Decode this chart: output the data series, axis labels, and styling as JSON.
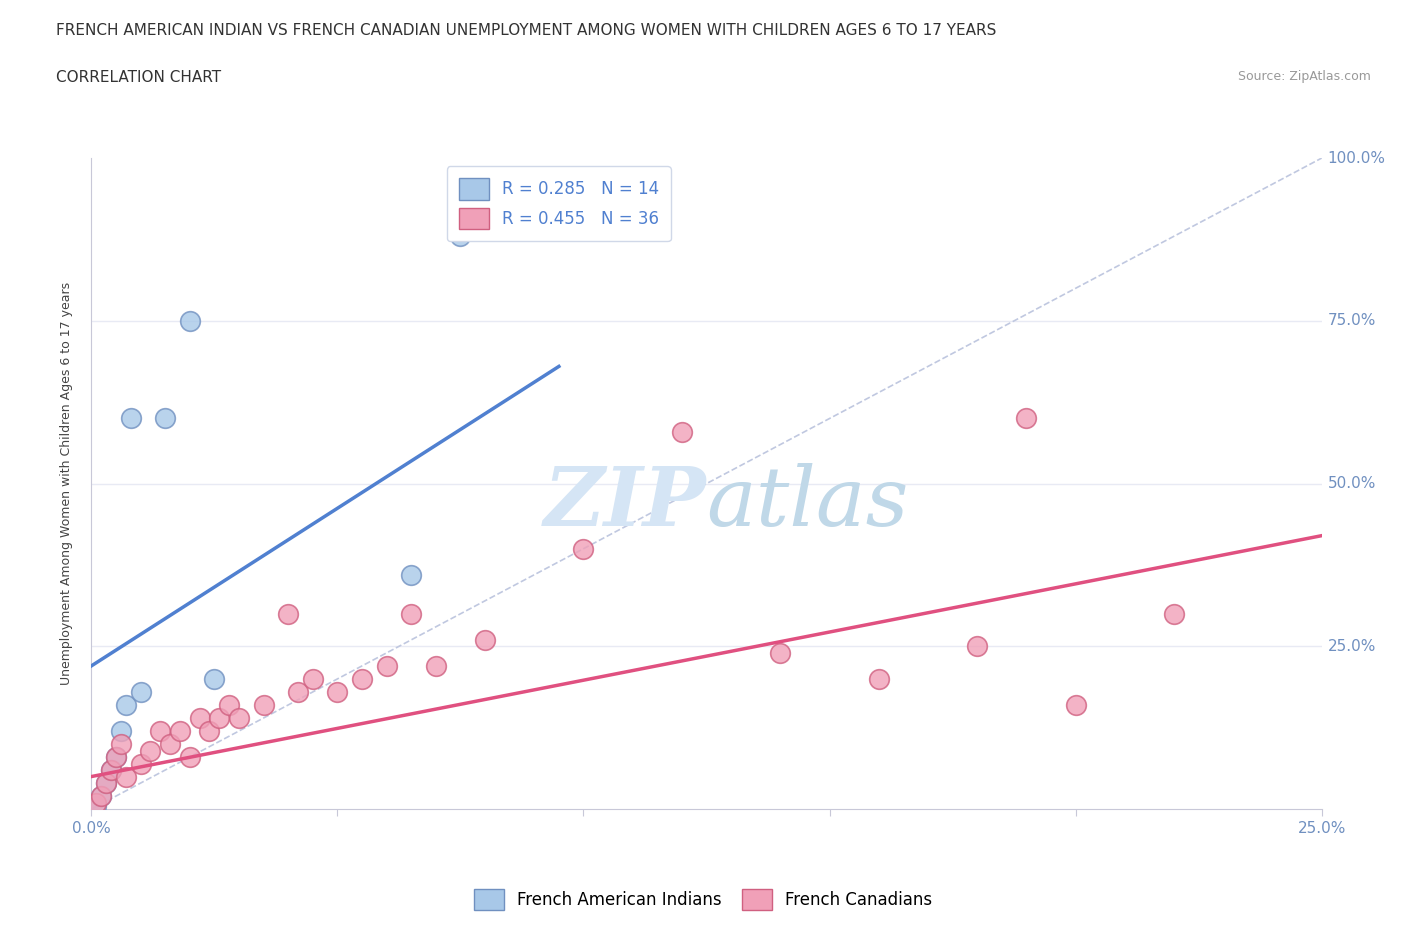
{
  "title": "FRENCH AMERICAN INDIAN VS FRENCH CANADIAN UNEMPLOYMENT AMONG WOMEN WITH CHILDREN AGES 6 TO 17 YEARS",
  "subtitle": "CORRELATION CHART",
  "source": "Source: ZipAtlas.com",
  "ylabel": "Unemployment Among Women with Children Ages 6 to 17 years",
  "xlim": [
    0,
    0.25
  ],
  "ylim": [
    0,
    1.0
  ],
  "xticks": [
    0.0,
    0.05,
    0.1,
    0.15,
    0.2,
    0.25
  ],
  "yticks": [
    0.0,
    0.25,
    0.5,
    0.75,
    1.0
  ],
  "legend_blue_label": "R = 0.285   N = 14",
  "legend_pink_label": "R = 0.455   N = 36",
  "legend_bottom_blue": "French American Indians",
  "legend_bottom_pink": "French Canadians",
  "blue_color": "#A8C8E8",
  "pink_color": "#F0A0B8",
  "blue_edge_color": "#7090C0",
  "pink_edge_color": "#D06080",
  "blue_line_color": "#5080D0",
  "pink_line_color": "#E05080",
  "ref_line_color": "#C0C8E0",
  "axis_tick_color": "#7090C0",
  "grid_color": "#E8EAF4",
  "watermark_color": "#D5E5F5",
  "background_color": "#FFFFFF",
  "blue_scatter_x": [
    0.001,
    0.002,
    0.003,
    0.004,
    0.005,
    0.006,
    0.007,
    0.008,
    0.01,
    0.015,
    0.02,
    0.025,
    0.065,
    0.075
  ],
  "blue_scatter_y": [
    0.005,
    0.02,
    0.04,
    0.06,
    0.08,
    0.12,
    0.16,
    0.6,
    0.18,
    0.6,
    0.75,
    0.2,
    0.36,
    0.88
  ],
  "pink_scatter_x": [
    0.001,
    0.002,
    0.003,
    0.004,
    0.005,
    0.006,
    0.007,
    0.01,
    0.012,
    0.014,
    0.016,
    0.018,
    0.02,
    0.022,
    0.024,
    0.026,
    0.028,
    0.03,
    0.035,
    0.04,
    0.042,
    0.045,
    0.05,
    0.055,
    0.06,
    0.065,
    0.07,
    0.08,
    0.1,
    0.12,
    0.14,
    0.16,
    0.18,
    0.19,
    0.2,
    0.22
  ],
  "pink_scatter_y": [
    0.01,
    0.02,
    0.04,
    0.06,
    0.08,
    0.1,
    0.05,
    0.07,
    0.09,
    0.12,
    0.1,
    0.12,
    0.08,
    0.14,
    0.12,
    0.14,
    0.16,
    0.14,
    0.16,
    0.3,
    0.18,
    0.2,
    0.18,
    0.2,
    0.22,
    0.3,
    0.22,
    0.26,
    0.4,
    0.58,
    0.24,
    0.2,
    0.25,
    0.6,
    0.16,
    0.3
  ],
  "blue_trend_x": [
    0.0,
    0.095
  ],
  "blue_trend_y": [
    0.22,
    0.68
  ],
  "pink_trend_x": [
    0.0,
    0.25
  ],
  "pink_trend_y": [
    0.05,
    0.42
  ],
  "ref_line_x": [
    0.0,
    0.25
  ],
  "ref_line_y": [
    0.0,
    1.0
  ],
  "title_fontsize": 11,
  "subtitle_fontsize": 11,
  "source_fontsize": 9,
  "axis_label_fontsize": 9,
  "tick_fontsize": 11,
  "legend_fontsize": 12
}
